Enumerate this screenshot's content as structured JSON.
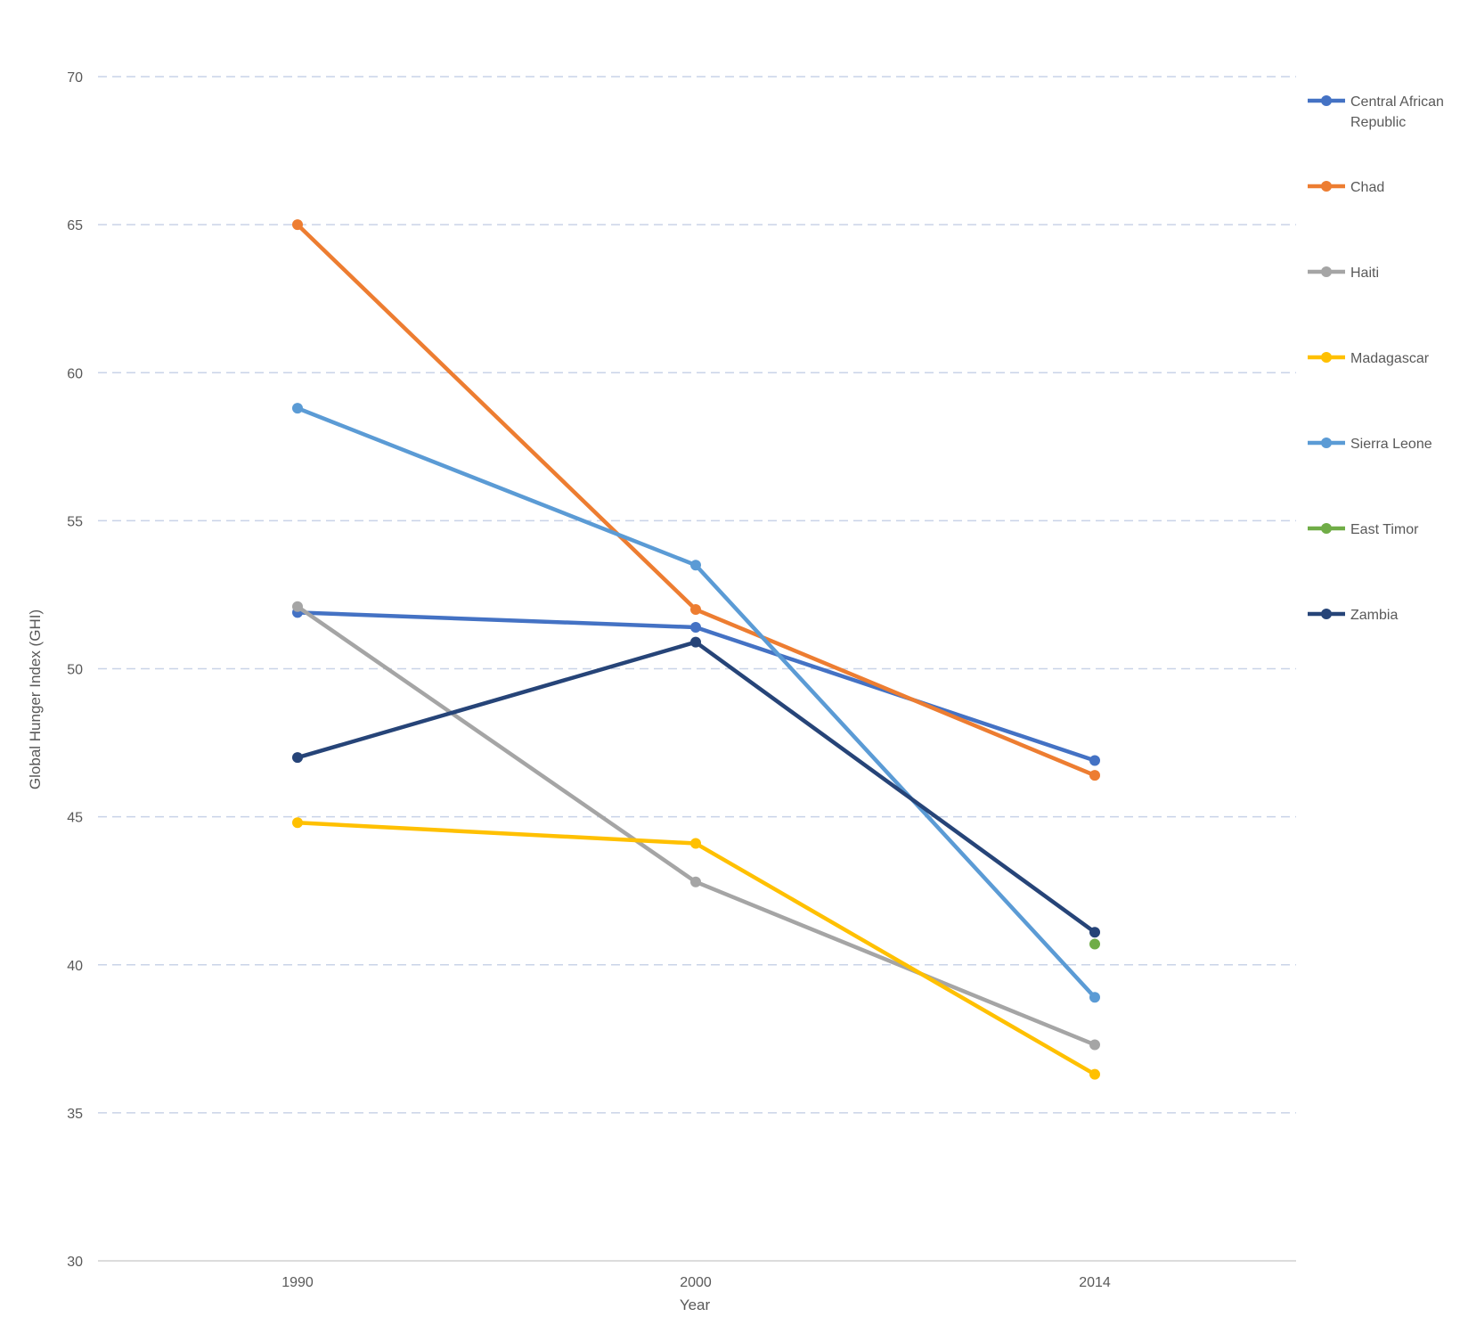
{
  "chart_data": {
    "type": "line",
    "title": "",
    "xlabel": "Year",
    "ylabel": "Global Hunger Index (GHI)",
    "categories": [
      "1990",
      "2000",
      "2014"
    ],
    "ylim": [
      30,
      70
    ],
    "yticks": [
      "30",
      "35",
      "40",
      "45",
      "50",
      "55",
      "60",
      "65",
      "70"
    ],
    "grid": true,
    "legend_position": "right",
    "series": [
      {
        "name": "Central African Republic",
        "color": "#4472c4",
        "values": [
          51.9,
          51.4,
          46.9
        ]
      },
      {
        "name": "Chad",
        "color": "#ed7d31",
        "values": [
          65.0,
          52.0,
          46.4
        ]
      },
      {
        "name": "Haiti",
        "color": "#a5a5a5",
        "values": [
          52.1,
          42.8,
          37.3
        ]
      },
      {
        "name": "Madagascar",
        "color": "#ffc000",
        "values": [
          44.8,
          44.1,
          36.3
        ]
      },
      {
        "name": "Sierra Leone",
        "color": "#5b9bd5",
        "values": [
          58.8,
          53.5,
          38.9
        ]
      },
      {
        "name": "East Timor",
        "color": "#70ad47",
        "values": [
          null,
          null,
          40.7
        ]
      },
      {
        "name": "Zambia",
        "color": "#264478",
        "values": [
          47.0,
          50.9,
          41.1
        ]
      }
    ]
  }
}
